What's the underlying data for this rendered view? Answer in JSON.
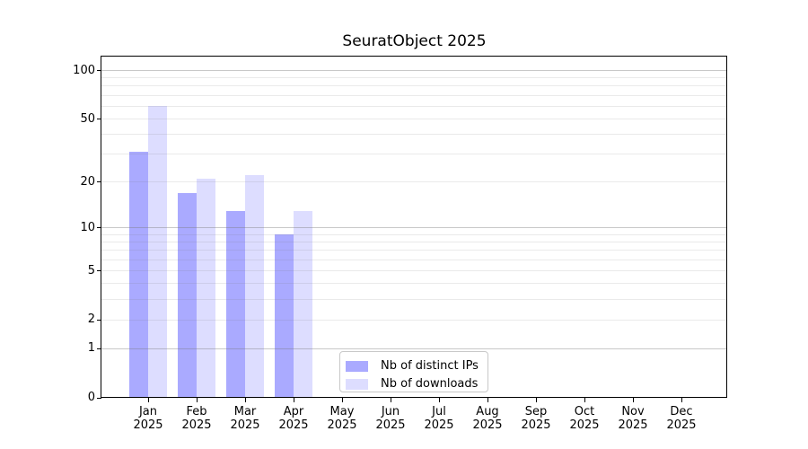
{
  "chart_data": {
    "type": "bar",
    "title": "SeuratObject 2025",
    "categories": [
      "Jan",
      "Feb",
      "Mar",
      "Apr",
      "May",
      "Jun",
      "Jul",
      "Aug",
      "Sep",
      "Oct",
      "Nov",
      "Dec"
    ],
    "x_year": "2025",
    "series": [
      {
        "name": "Nb of distinct IPs",
        "color": "#aaaaff",
        "values": [
          31,
          17,
          13,
          9,
          null,
          null,
          null,
          null,
          null,
          null,
          null,
          null
        ]
      },
      {
        "name": "Nb of downloads",
        "color": "#ddddff",
        "values": [
          60,
          21,
          22,
          13,
          null,
          null,
          null,
          null,
          null,
          null,
          null,
          null
        ]
      }
    ],
    "yscale": "log1p",
    "ylim": [
      0,
      122
    ],
    "yticks": [
      0,
      1,
      2,
      5,
      10,
      20,
      50,
      100
    ],
    "minor_gridlines": [
      2,
      3,
      4,
      5,
      6,
      7,
      8,
      9,
      20,
      30,
      40,
      50,
      60,
      70,
      80,
      90
    ],
    "major_gridlines": [
      1,
      10,
      100
    ],
    "grid_minor_color": "rgba(125,125,125,0.16)",
    "grid_major_color": "rgba(125,125,125,0.42)",
    "axis_color": "#000000",
    "legend_position": "bottom-center",
    "xlabel": "",
    "ylabel": ""
  }
}
